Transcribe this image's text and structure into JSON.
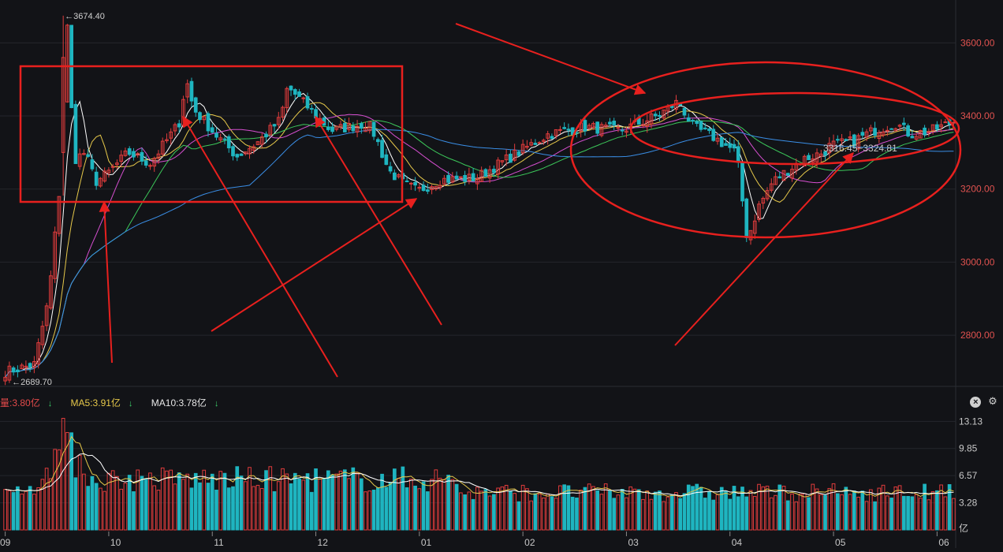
{
  "chart_data": {
    "type": "candlestick",
    "price": {
      "ylim": [
        2660,
        3700
      ],
      "y_ticks": [
        "3600.00",
        "3400.00",
        "3200.00",
        "3000.00",
        "2800.00"
      ],
      "y_tick_values": [
        3600,
        3400,
        3200,
        3000,
        2800
      ],
      "high_label": "3674.40",
      "low_label": "2689.70",
      "range_label": "3316.45~3324.81",
      "last_close": 3385
    },
    "months": [
      "09",
      "10",
      "11",
      "12",
      "01",
      "02",
      "03",
      "04",
      "05",
      "06"
    ],
    "volume": {
      "y_ticks": [
        "13.13",
        "9.85",
        "6.57",
        "3.28"
      ],
      "y_tick_values": [
        13.13,
        9.85,
        6.57,
        3.28
      ],
      "unit": "亿",
      "ylim": [
        0,
        14.5
      ],
      "legend": {
        "vol_label": "量:3.80亿",
        "ma5_label": "MA5:3.91亿",
        "ma10_label": "MA10:3.78亿"
      }
    },
    "colors": {
      "up": "#e03c3c",
      "down": "#1fb5c0",
      "ma5": "#ffffff",
      "ma10": "#e6c84a",
      "ma20": "#d64fd0",
      "ma30": "#3cc85a",
      "ma60": "#3a8ee6",
      "annotation": "#e8201e",
      "grid": "#24262c"
    }
  }
}
